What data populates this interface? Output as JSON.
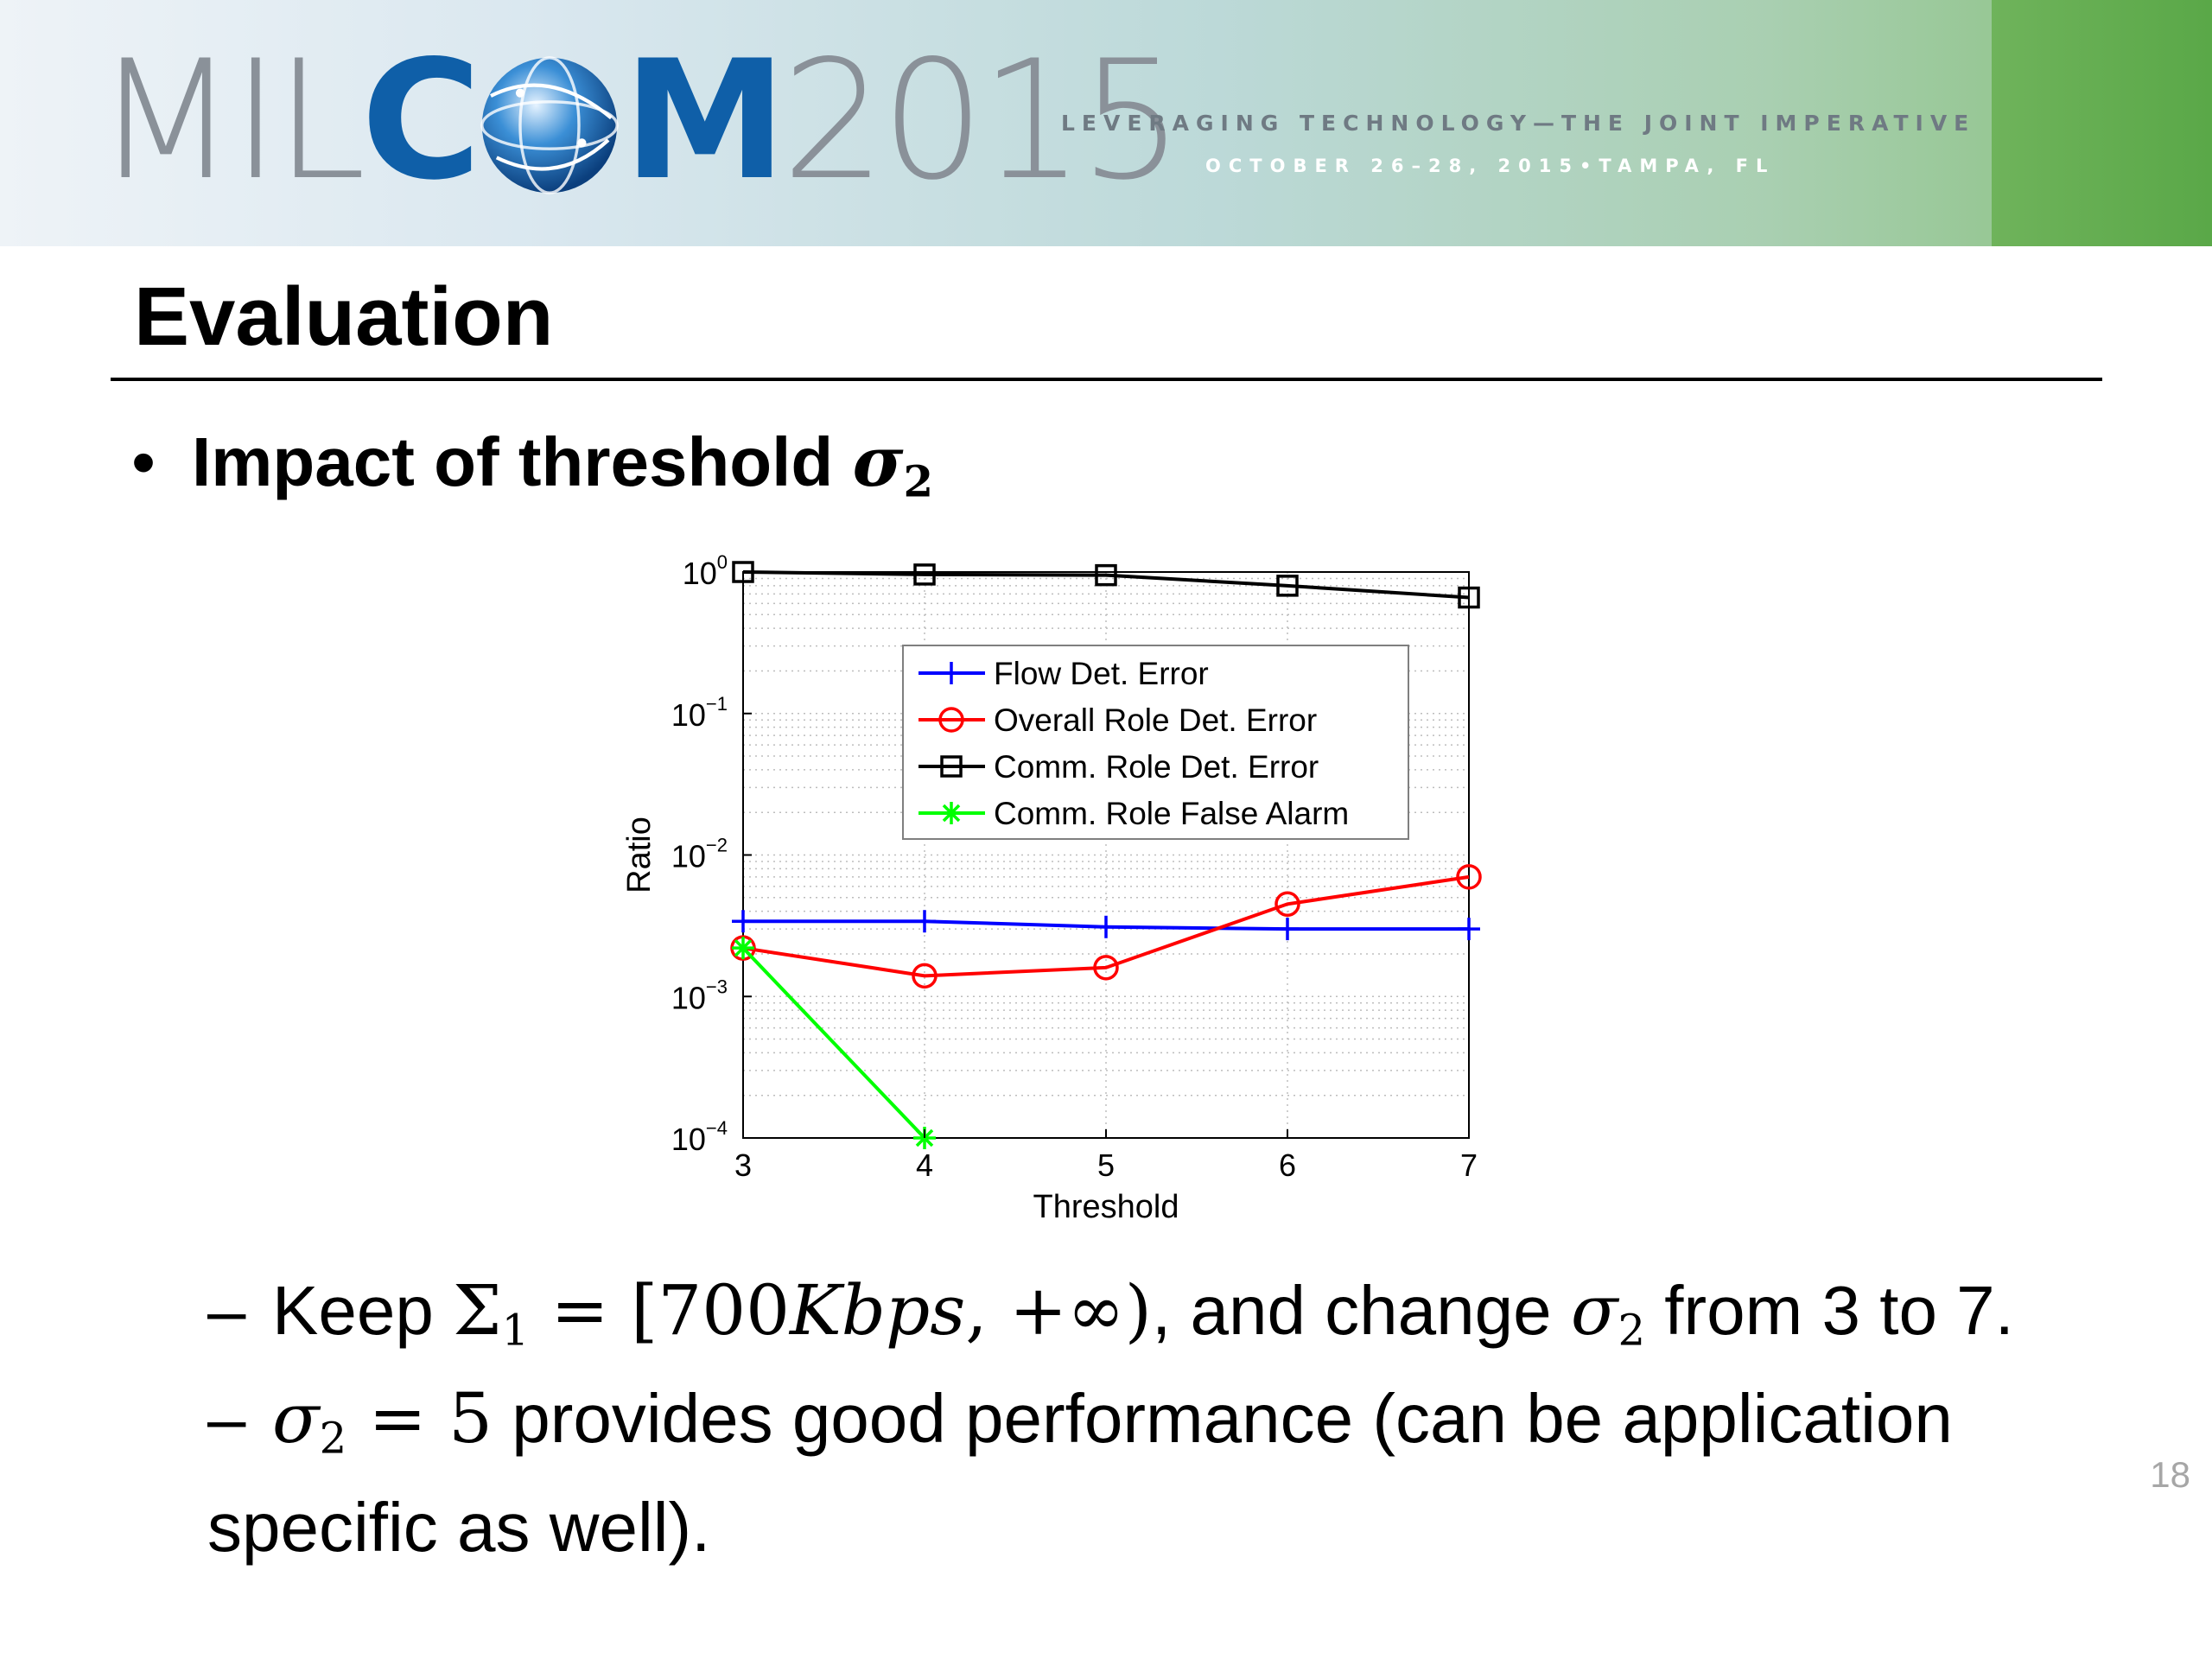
{
  "banner": {
    "logo_left": "MIL",
    "logo_mid": "CM",
    "logo_year": "2015",
    "tagline": "LEVERAGING TECHNOLOGY—THE JOINT IMPERATIVE",
    "dateline": "OCTOBER 26–28, 2015•TAMPA, FL",
    "colors": {
      "brand_blue": "#0f5fa8",
      "gray": "#8a9199",
      "green": "#5aa848"
    }
  },
  "slide": {
    "title": "Evaluation",
    "bullet_text": "Impact of threshold",
    "bullet_symbol": "σ",
    "bullet_sub": "2",
    "line1": {
      "dash": "–",
      "keep": "Keep",
      "Sigma": "Σ",
      "Sigma_sub": "1",
      "eq": " = [",
      "rate": "700",
      "unit": "Kbps",
      "comma_inf": ", +∞)",
      "rest": ", and change",
      "sigma": "σ",
      "sigma_sub": "2",
      "tail": "from 3 to 7."
    },
    "line2": {
      "dash": "–",
      "sigma": "σ",
      "sigma_sub": "2",
      "eq_val": " = 5",
      "text": "provides good performance (can be application specific as well)."
    },
    "page_number": "18"
  },
  "chart_data": {
    "type": "line",
    "title": "",
    "xlabel": "Threshold",
    "ylabel": "Ratio",
    "x": [
      3,
      4,
      5,
      6,
      7
    ],
    "xlim": [
      3,
      7
    ],
    "ylim": [
      0.0001,
      1
    ],
    "yscale": "log",
    "y_tick_labels": [
      {
        "base": "10",
        "exp": "0"
      },
      {
        "base": "10",
        "exp": "−1"
      },
      {
        "base": "10",
        "exp": "−2"
      },
      {
        "base": "10",
        "exp": "−3"
      },
      {
        "base": "10",
        "exp": "−4"
      }
    ],
    "y_ticks": [
      1,
      0.1,
      0.01,
      0.001,
      0.0001
    ],
    "grid": true,
    "legend_position": "upper-right",
    "series": [
      {
        "name": "Flow Det. Error",
        "color": "#0000ff",
        "marker": "plus",
        "values": [
          0.0034,
          0.0034,
          0.0031,
          0.003,
          0.003
        ]
      },
      {
        "name": "Overall Role Det. Error",
        "color": "#ff0000",
        "marker": "circle",
        "values": [
          0.0022,
          0.0014,
          0.0016,
          0.0045,
          0.007
        ]
      },
      {
        "name": "Comm. Role Det. Error",
        "color": "#000000",
        "marker": "square",
        "values": [
          1.0,
          0.96,
          0.95,
          0.8,
          0.66
        ]
      },
      {
        "name": "Comm. Role False Alarm",
        "color": "#00ff00",
        "marker": "star",
        "values": [
          0.0022,
          0.0001,
          null,
          null,
          null
        ]
      }
    ]
  }
}
